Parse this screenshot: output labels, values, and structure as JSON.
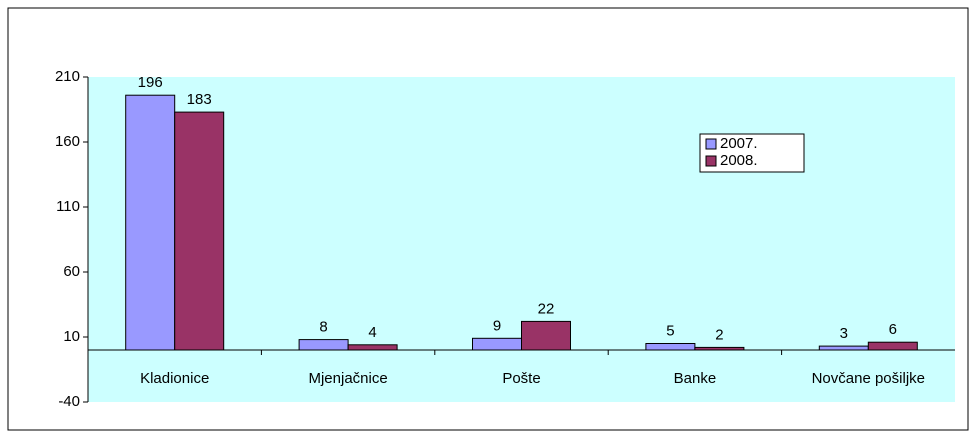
{
  "chart_data": {
    "type": "bar",
    "categories": [
      "Kladionice",
      "Mjenjačnice",
      "Pošte",
      "Banke",
      "Novčane pošiljke"
    ],
    "series": [
      {
        "name": "2007.",
        "color": "#9999ff",
        "values": [
          196,
          8,
          9,
          5,
          3
        ]
      },
      {
        "name": "2008.",
        "color": "#993366",
        "values": [
          183,
          4,
          22,
          2,
          6
        ]
      }
    ],
    "ylim": [
      -40,
      210
    ],
    "yticks": [
      -40,
      10,
      60,
      110,
      160,
      210
    ],
    "grid": false,
    "legend": "right"
  }
}
